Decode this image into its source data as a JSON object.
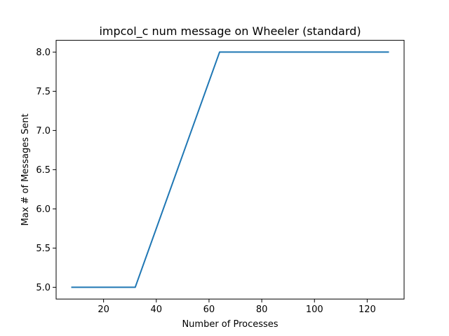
{
  "chart_data": {
    "type": "line",
    "title": "impcol_c num message on Wheeler (standard)",
    "xlabel": "Number of Processes",
    "ylabel": "Max # of Messages Sent",
    "xlim": [
      2,
      134
    ],
    "ylim": [
      4.85,
      8.15
    ],
    "xticks": [
      20,
      40,
      60,
      80,
      100,
      120
    ],
    "xtick_labels": [
      "20",
      "40",
      "60",
      "80",
      "100",
      "120"
    ],
    "yticks": [
      5.0,
      5.5,
      6.0,
      6.5,
      7.0,
      7.5,
      8.0
    ],
    "ytick_labels": [
      "5.0",
      "5.5",
      "6.0",
      "6.5",
      "7.0",
      "7.5",
      "8.0"
    ],
    "grid": false,
    "series": [
      {
        "color": "#1f77b4",
        "x": [
          8,
          16,
          32,
          64,
          128
        ],
        "y": [
          5,
          5,
          5,
          8,
          8
        ]
      }
    ]
  }
}
